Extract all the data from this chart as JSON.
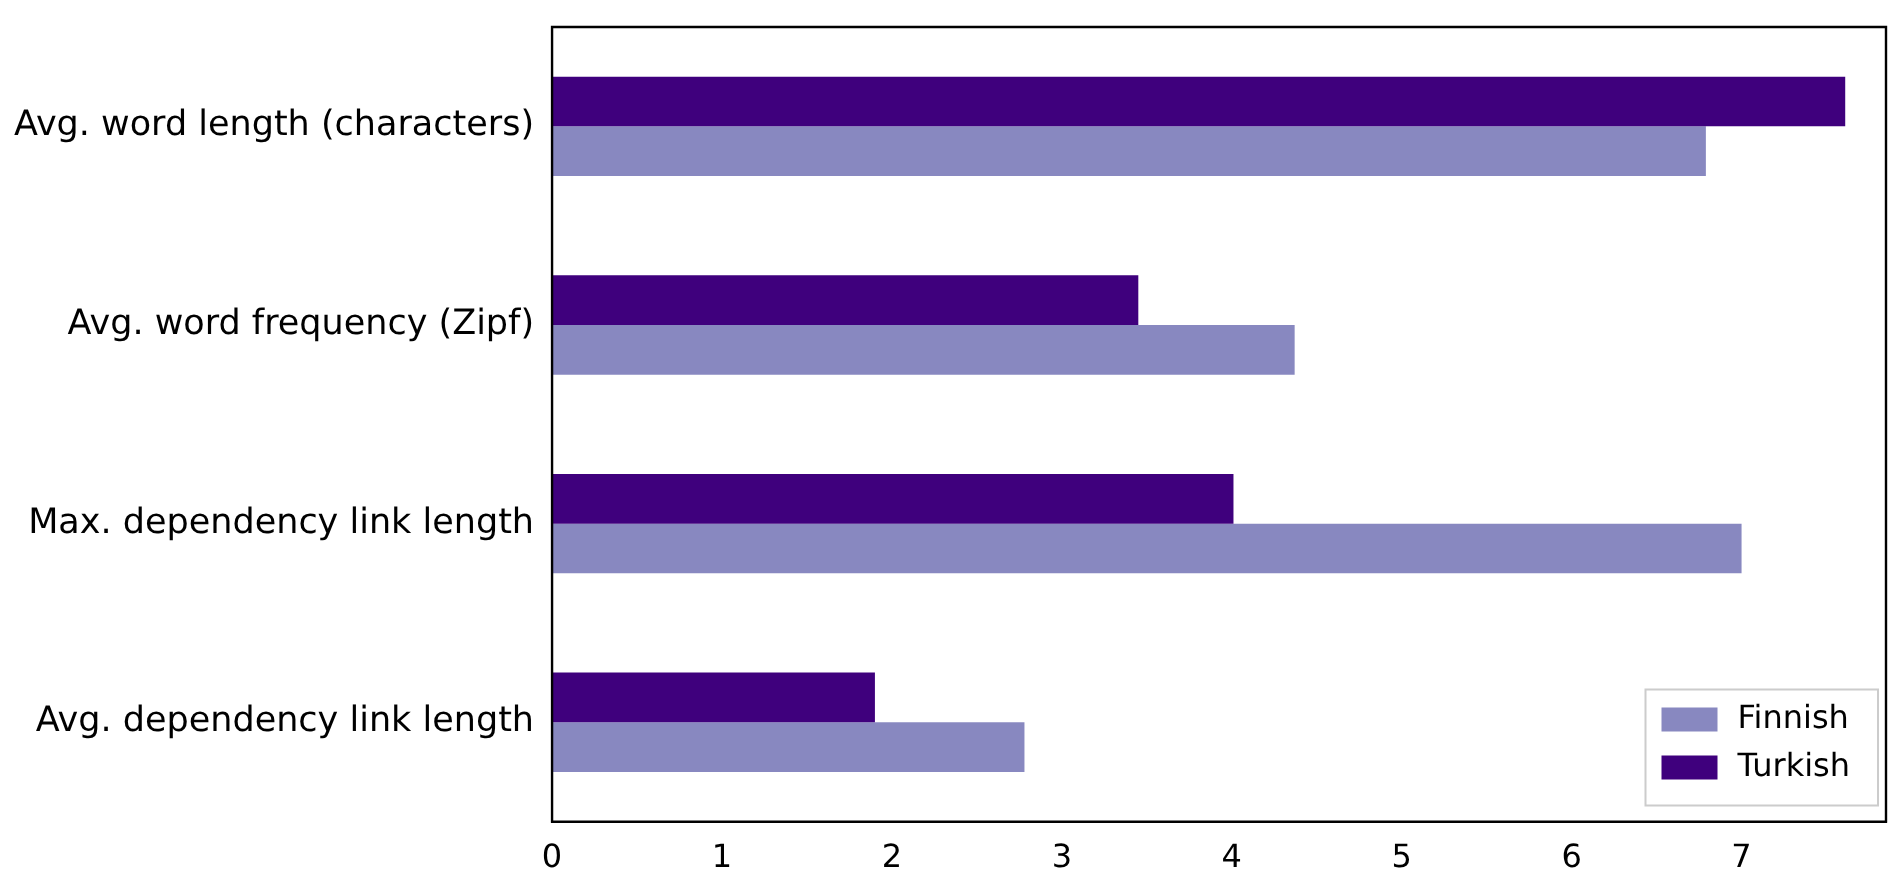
{
  "chart_data": {
    "type": "bar",
    "orientation": "horizontal",
    "categories": [
      "Avg. word length (characters)",
      "Avg. word frequency (Zipf)",
      "Max. dependency link length",
      "Avg. dependency link length"
    ],
    "series": [
      {
        "name": "Finnish",
        "color": "#8888c0",
        "values": [
          6.79,
          4.37,
          7.0,
          2.78
        ]
      },
      {
        "name": "Turkish",
        "color": "#3f007d",
        "values": [
          7.61,
          3.45,
          4.01,
          1.9
        ]
      }
    ],
    "xlim": [
      0,
      7.85
    ],
    "xticks": [
      0,
      1,
      2,
      3,
      4,
      5,
      6,
      7
    ],
    "grid": false,
    "legend": "bottom right"
  }
}
